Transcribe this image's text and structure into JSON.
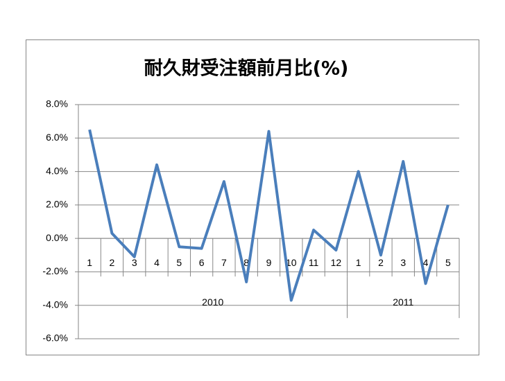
{
  "chart_data": {
    "type": "line",
    "title": "耐久財受注額前月比(%)",
    "categories": [
      "1",
      "2",
      "3",
      "4",
      "5",
      "6",
      "7",
      "8",
      "9",
      "10",
      "11",
      "12",
      "1",
      "2",
      "3",
      "4",
      "5"
    ],
    "category_groups": [
      {
        "label": "2010",
        "count": 12
      },
      {
        "label": "2011",
        "count": 5
      }
    ],
    "values": [
      6.5,
      0.3,
      -1.1,
      4.4,
      -0.5,
      -0.6,
      3.4,
      -2.6,
      6.4,
      -3.7,
      0.5,
      -0.7,
      4.0,
      -1.0,
      4.6,
      -2.7,
      2.0
    ],
    "color": "#4a7ebb",
    "ylim": [
      -6,
      8
    ],
    "yticks": [
      {
        "value": -6,
        "label": "-6.0%"
      },
      {
        "value": -4,
        "label": "-4.0%"
      },
      {
        "value": -2,
        "label": "-2.0%"
      },
      {
        "value": 0,
        "label": "0.0%"
      },
      {
        "value": 2,
        "label": "2.0%"
      },
      {
        "value": 4,
        "label": "4.0%"
      },
      {
        "value": 6,
        "label": "6.0%"
      },
      {
        "value": 8,
        "label": "8.0%"
      }
    ],
    "grid": true
  }
}
